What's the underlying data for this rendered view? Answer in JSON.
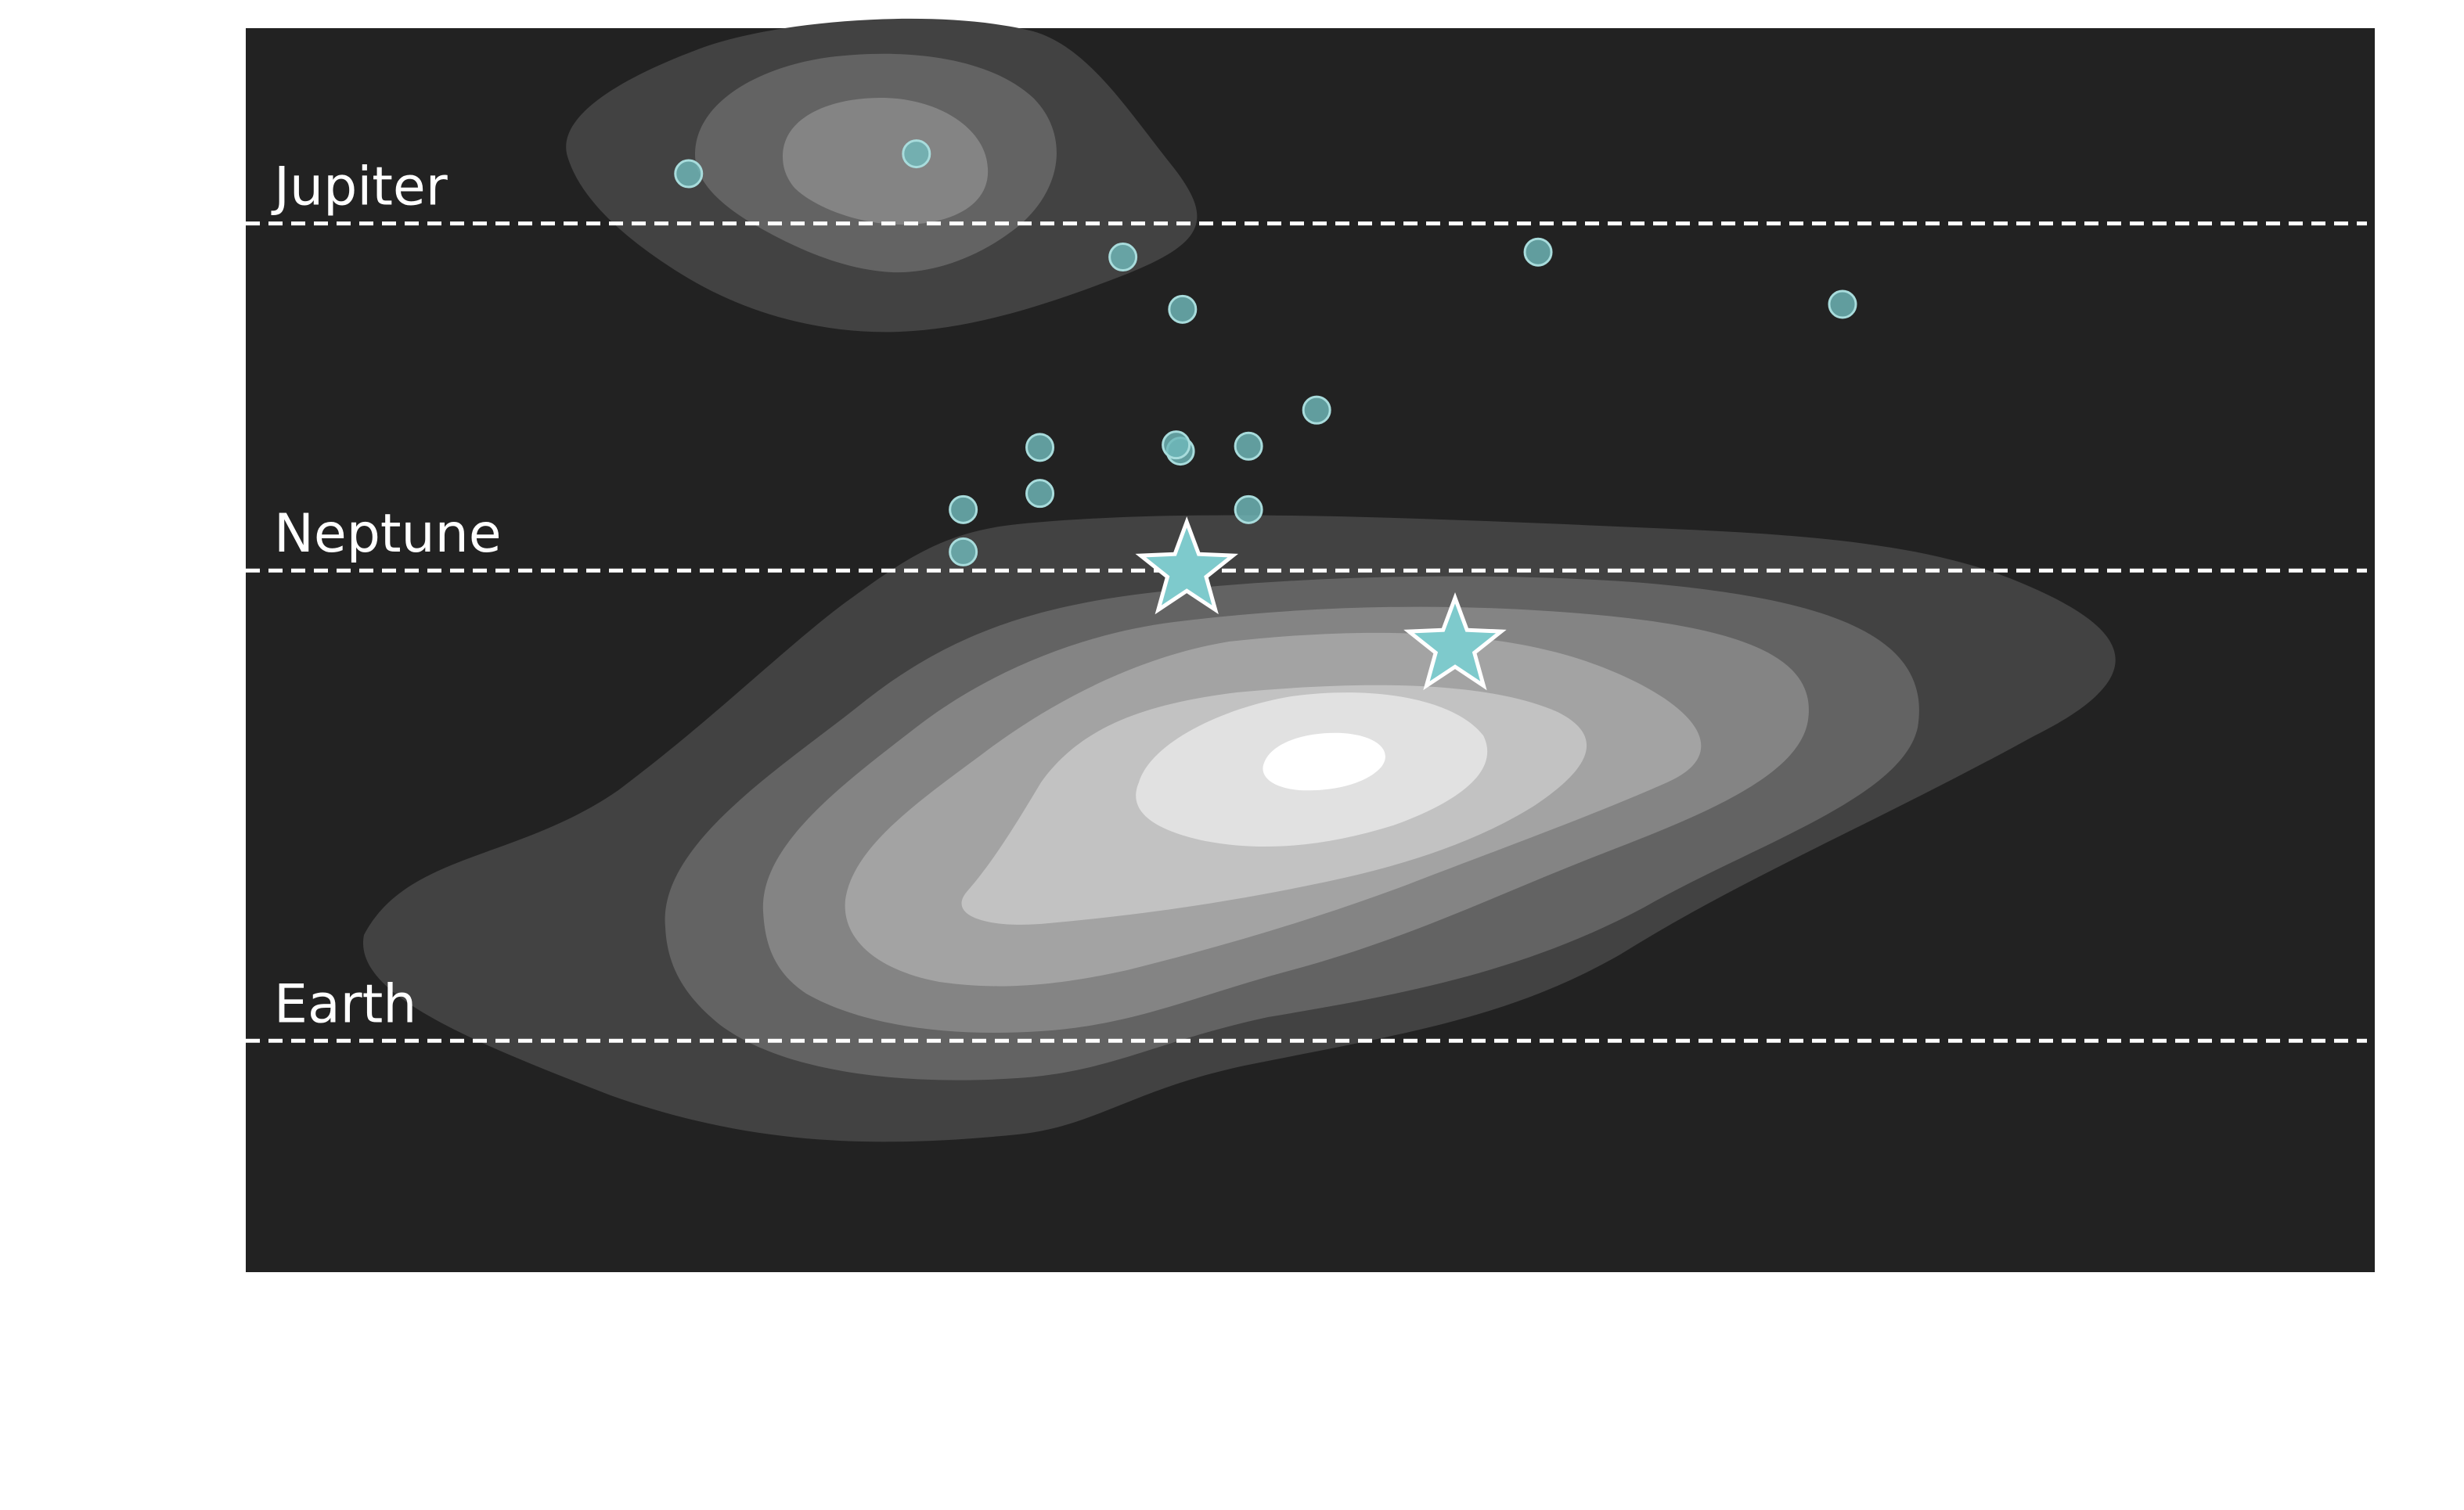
{
  "colors": {
    "page_background": "#ffffff",
    "plot_background": "#222222",
    "density_levels": [
      "#424242",
      "#636363",
      "#848484",
      "#a3a3a3",
      "#c2c2c2",
      "#e1e1e1",
      "#ffffff"
    ],
    "point_fill": "#6fb8ba",
    "point_stroke": "#a8dcdc",
    "star_fill": "#7ecacc",
    "star_stroke": "#ffffff",
    "reference_line": "#ffffff",
    "label_text": "#ffffff"
  },
  "chart_data": {
    "type": "scatter",
    "title": "",
    "xlabel": "",
    "ylabel": "",
    "xlim": [
      0,
      100
    ],
    "ylim": [
      0,
      100
    ],
    "grid": false,
    "reference_lines": [
      {
        "label": "Jupiter",
        "y": 84.3
      },
      {
        "label": "Neptune",
        "y": 56.4
      },
      {
        "label": "Earth",
        "y": 18.6
      }
    ],
    "points": [
      {
        "x": 20.8,
        "y": 88.3
      },
      {
        "x": 31.5,
        "y": 89.9
      },
      {
        "x": 41.2,
        "y": 81.6
      },
      {
        "x": 44.0,
        "y": 77.4
      },
      {
        "x": 60.7,
        "y": 82.0
      },
      {
        "x": 75.0,
        "y": 77.8
      },
      {
        "x": 50.3,
        "y": 69.3
      },
      {
        "x": 37.3,
        "y": 66.3
      },
      {
        "x": 43.9,
        "y": 66.0
      },
      {
        "x": 43.7,
        "y": 66.5
      },
      {
        "x": 47.1,
        "y": 66.4
      },
      {
        "x": 37.3,
        "y": 62.6
      },
      {
        "x": 33.7,
        "y": 61.3
      },
      {
        "x": 47.1,
        "y": 61.3
      },
      {
        "x": 33.7,
        "y": 57.9
      }
    ],
    "highlighted": [
      {
        "x": 44.2,
        "y": 56.4
      },
      {
        "x": 56.8,
        "y": 50.3
      }
    ],
    "density": {
      "description": "kernel density estimate, two clusters",
      "levels": 7
    }
  }
}
